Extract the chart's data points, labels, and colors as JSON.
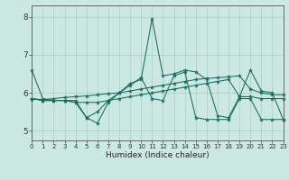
{
  "xlabel": "Humidex (Indice chaleur)",
  "bg_color": "#cce8e2",
  "line_color": "#1a6b5a",
  "grid_color": "#aaccca",
  "xlim": [
    0,
    23
  ],
  "ylim": [
    4.75,
    8.3
  ],
  "yticks": [
    5,
    6,
    7,
    8
  ],
  "xticks": [
    0,
    1,
    2,
    3,
    4,
    5,
    6,
    7,
    8,
    9,
    10,
    11,
    12,
    13,
    14,
    15,
    16,
    17,
    18,
    19,
    20,
    21,
    22,
    23
  ],
  "series1": [
    6.6,
    5.85,
    5.8,
    5.8,
    5.8,
    5.35,
    5.2,
    5.75,
    6.0,
    6.25,
    6.35,
    7.95,
    6.45,
    6.5,
    6.6,
    6.55,
    6.35,
    5.4,
    5.35,
    5.9,
    6.6,
    6.05,
    6.0,
    5.3
  ],
  "series2": [
    5.85,
    5.8,
    5.8,
    5.8,
    5.75,
    5.35,
    5.5,
    5.8,
    6.0,
    6.2,
    6.4,
    5.85,
    5.8,
    6.45,
    6.55,
    5.35,
    5.3,
    5.3,
    5.3,
    5.85,
    5.85,
    5.3,
    5.3,
    5.3
  ],
  "series3": [
    5.85,
    5.82,
    5.85,
    5.88,
    5.9,
    5.92,
    5.95,
    5.98,
    6.0,
    6.05,
    6.1,
    6.15,
    6.2,
    6.25,
    6.3,
    6.35,
    6.38,
    6.4,
    6.42,
    6.45,
    6.1,
    6.0,
    5.95,
    5.95
  ],
  "series4": [
    5.85,
    5.8,
    5.8,
    5.8,
    5.75,
    5.75,
    5.75,
    5.8,
    5.85,
    5.9,
    5.95,
    6.0,
    6.05,
    6.1,
    6.15,
    6.2,
    6.25,
    6.3,
    6.35,
    5.9,
    5.9,
    5.85,
    5.85,
    5.85
  ]
}
